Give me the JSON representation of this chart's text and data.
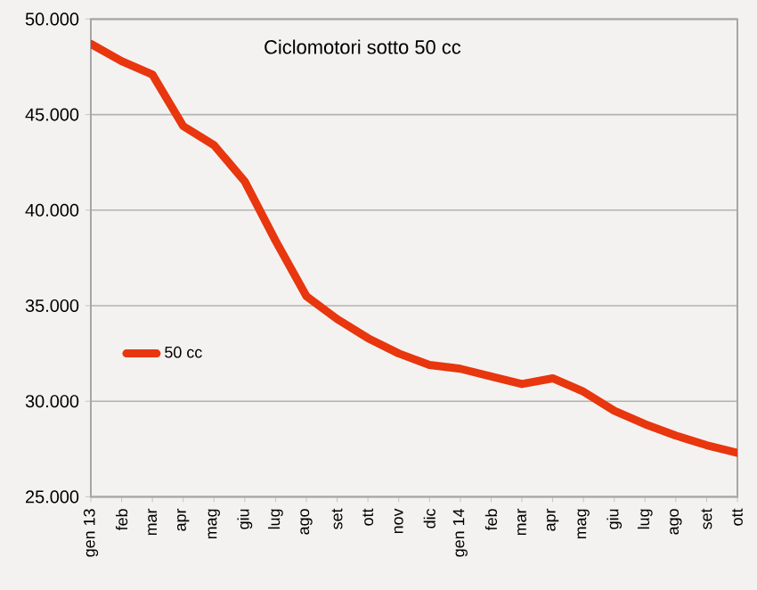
{
  "chart_data": {
    "type": "line",
    "title": "Ciclomotori sotto 50 cc",
    "categories": [
      "gen 13",
      "feb",
      "mar",
      "apr",
      "mag",
      "giu",
      "lug",
      "ago",
      "set",
      "ott",
      "nov",
      "dic",
      "gen 14",
      "feb",
      "mar",
      "apr",
      "mag",
      "giu",
      "lug",
      "ago",
      "set",
      "ott"
    ],
    "series": [
      {
        "name": "50 cc",
        "color": "#e8360e",
        "values": [
          48700,
          47800,
          47100,
          44400,
          43400,
          41500,
          38400,
          35500,
          34300,
          33300,
          32500,
          31900,
          31700,
          31300,
          30900,
          31200,
          30500,
          29500,
          28800,
          28200,
          27700,
          27300
        ]
      }
    ],
    "ylim": [
      25000,
      50000
    ],
    "yticks": [
      {
        "value": 25000,
        "label": "25.000"
      },
      {
        "value": 30000,
        "label": "30.000"
      },
      {
        "value": 35000,
        "label": "35.000"
      },
      {
        "value": 40000,
        "label": "40.000"
      },
      {
        "value": 45000,
        "label": "45.000"
      },
      {
        "value": 50000,
        "label": "50.000"
      }
    ],
    "grid": "y",
    "legend": "left",
    "line_style": "solid"
  }
}
